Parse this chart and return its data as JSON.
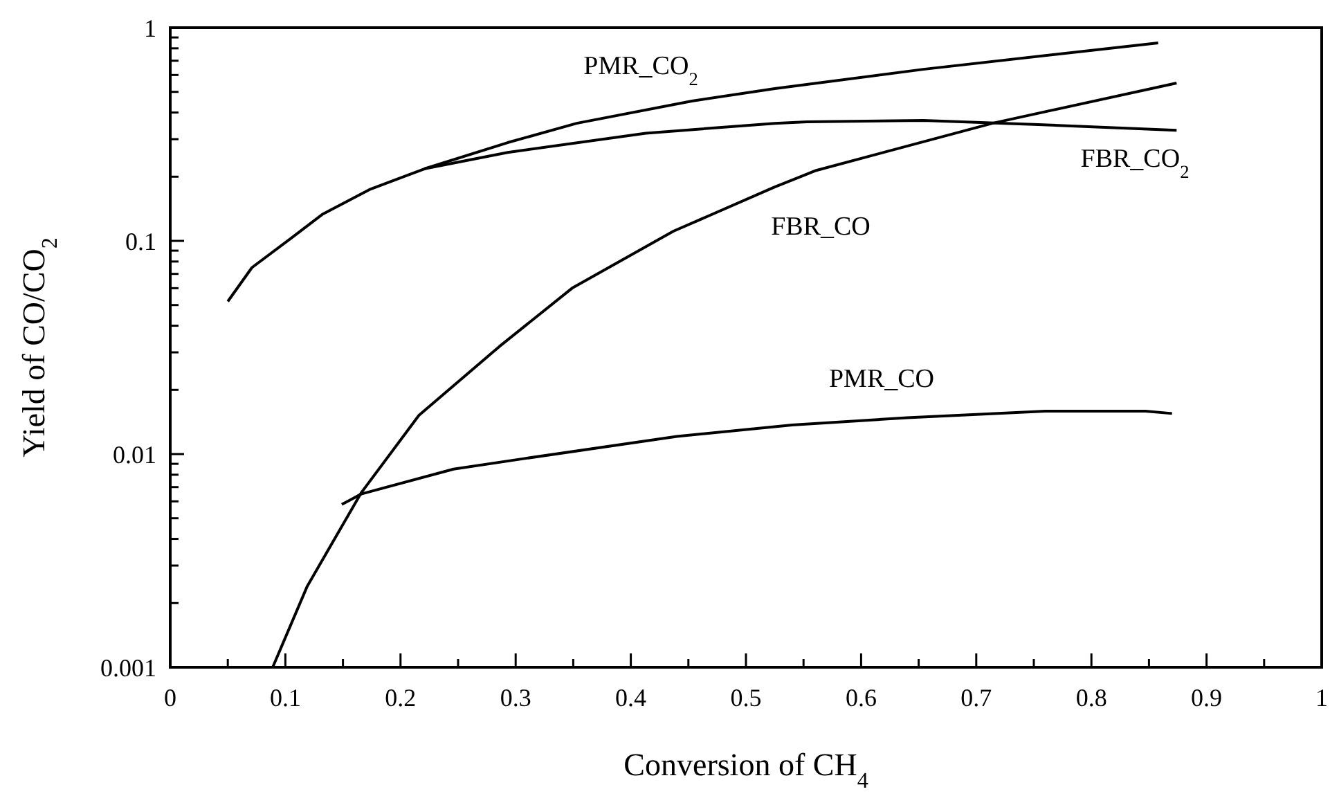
{
  "chart_data": {
    "type": "line",
    "xlabel": "Conversion of CH$_{4}$",
    "ylabel": "Yield of CO/CO$_{2}$",
    "log": "y",
    "xlim": [
      0,
      1
    ],
    "ylim": [
      0.001,
      1
    ],
    "xticks": [
      0,
      {
        "value": 0.05,
        "label": null
      },
      0.1,
      {
        "value": 0.15,
        "label": null
      },
      0.2,
      {
        "value": 0.25,
        "label": null
      },
      0.3,
      {
        "value": 0.35,
        "label": null
      },
      0.4,
      {
        "value": 0.45,
        "label": null
      },
      0.5,
      {
        "value": 0.55,
        "label": null
      },
      0.6,
      {
        "value": 0.65,
        "label": null
      },
      0.7,
      {
        "value": 0.75,
        "label": null
      },
      0.8,
      {
        "value": 0.85,
        "label": null
      },
      0.9,
      {
        "value": 0.95,
        "label": null
      },
      1
    ],
    "yticks": [
      0.001,
      {
        "value": 0.002,
        "label": null
      },
      {
        "value": 0.003,
        "label": null
      },
      {
        "value": 0.004,
        "label": null
      },
      {
        "value": 0.005,
        "label": null
      },
      {
        "value": 0.006,
        "label": null
      },
      {
        "value": 0.007,
        "label": null
      },
      {
        "value": 0.008,
        "label": null
      },
      {
        "value": 0.009,
        "label": null
      },
      0.01,
      {
        "value": 0.02,
        "label": null
      },
      {
        "value": 0.03,
        "label": null
      },
      {
        "value": 0.04,
        "label": null
      },
      {
        "value": 0.05,
        "label": null
      },
      {
        "value": 0.06,
        "label": null
      },
      {
        "value": 0.07,
        "label": null
      },
      {
        "value": 0.08,
        "label": null
      },
      {
        "value": 0.09,
        "label": null
      },
      0.1,
      {
        "value": 0.2,
        "label": null
      },
      {
        "value": 0.3,
        "label": null
      },
      {
        "value": 0.4,
        "label": null
      },
      {
        "value": 0.5,
        "label": null
      },
      {
        "value": 0.6,
        "label": null
      },
      {
        "value": 0.7,
        "label": null
      },
      {
        "value": 0.8,
        "label": null
      },
      {
        "value": 0.9,
        "label": null
      },
      1
    ],
    "marker": "none",
    "line_style": "solid",
    "series": [
      {
        "name": "PMR_CO$_{2}$",
        "color": "#000000",
        "x": [
          0.05,
          0.071,
          0.105,
          0.132,
          0.173,
          0.221,
          0.293,
          0.353,
          0.453,
          0.525,
          0.654,
          0.858
        ],
        "values": [
          0.052,
          0.075,
          0.103,
          0.133,
          0.174,
          0.218,
          0.289,
          0.356,
          0.453,
          0.518,
          0.638,
          0.849
        ]
      },
      {
        "name": "FBR_CO$_{2}$",
        "color": "#000000",
        "x": [
          0.221,
          0.293,
          0.413,
          0.525,
          0.553,
          0.654,
          0.754,
          0.874
        ],
        "values": [
          0.218,
          0.26,
          0.32,
          0.356,
          0.362,
          0.367,
          0.351,
          0.33
        ]
      },
      {
        "name": "FBR_CO",
        "color": "#000000",
        "x": [
          0.089,
          0.119,
          0.166,
          0.216,
          0.286,
          0.349,
          0.437,
          0.525,
          0.561,
          0.714,
          0.874
        ],
        "values": [
          0.001,
          0.0024,
          0.0066,
          0.0152,
          0.032,
          0.06,
          0.111,
          0.179,
          0.214,
          0.356,
          0.55
        ]
      },
      {
        "name": "PMR_CO",
        "color": "#000000",
        "x": [
          0.149,
          0.166,
          0.246,
          0.306,
          0.44,
          0.54,
          0.64,
          0.76,
          0.847,
          0.87
        ],
        "values": [
          0.0058,
          0.0065,
          0.0085,
          0.0095,
          0.0121,
          0.0137,
          0.0148,
          0.0159,
          0.0159,
          0.0155
        ]
      }
    ]
  }
}
